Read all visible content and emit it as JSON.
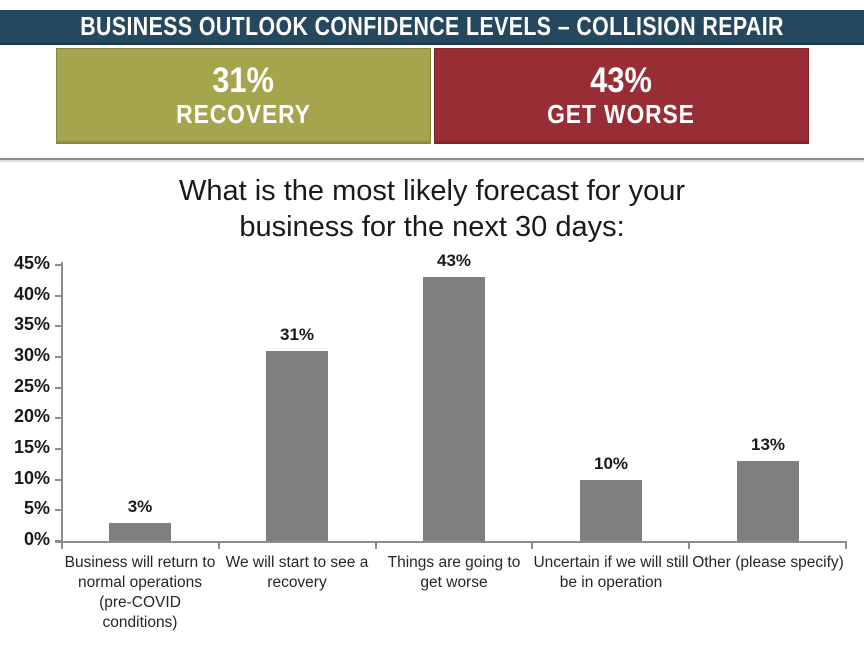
{
  "header": {
    "title": "BUSINESS OUTLOOK CONFIDENCE LEVELS – COLLISION REPAIR",
    "bg_color": "#26485F",
    "text_color": "#FFFFFF"
  },
  "summary_boxes": [
    {
      "value": "31%",
      "label": "RECOVERY",
      "bg_color": "#A4A54D"
    },
    {
      "value": "43%",
      "label": "GET WORSE",
      "bg_color": "#992D35"
    }
  ],
  "chart_data": {
    "type": "bar",
    "title": "What is the most likely forecast for your business for the next 30 days:",
    "categories": [
      "Business will return to normal operations (pre-COVID conditions)",
      "We will start to see a recovery",
      "Things are going to get worse",
      "Uncertain if we will still be in operation",
      "Other (please specify)"
    ],
    "values": [
      3,
      31,
      43,
      10,
      13
    ],
    "data_labels": [
      "3%",
      "31%",
      "43%",
      "10%",
      "13%"
    ],
    "y_ticks": [
      "45%",
      "40%",
      "35%",
      "30%",
      "25%",
      "20%",
      "15%",
      "10%",
      "5%",
      "0%"
    ],
    "ylim": [
      0,
      45
    ],
    "xlabel": "",
    "ylabel": "",
    "bar_color": "#7F7F7F",
    "axis_color": "#8C8C8C",
    "grid": false,
    "legend": false
  }
}
